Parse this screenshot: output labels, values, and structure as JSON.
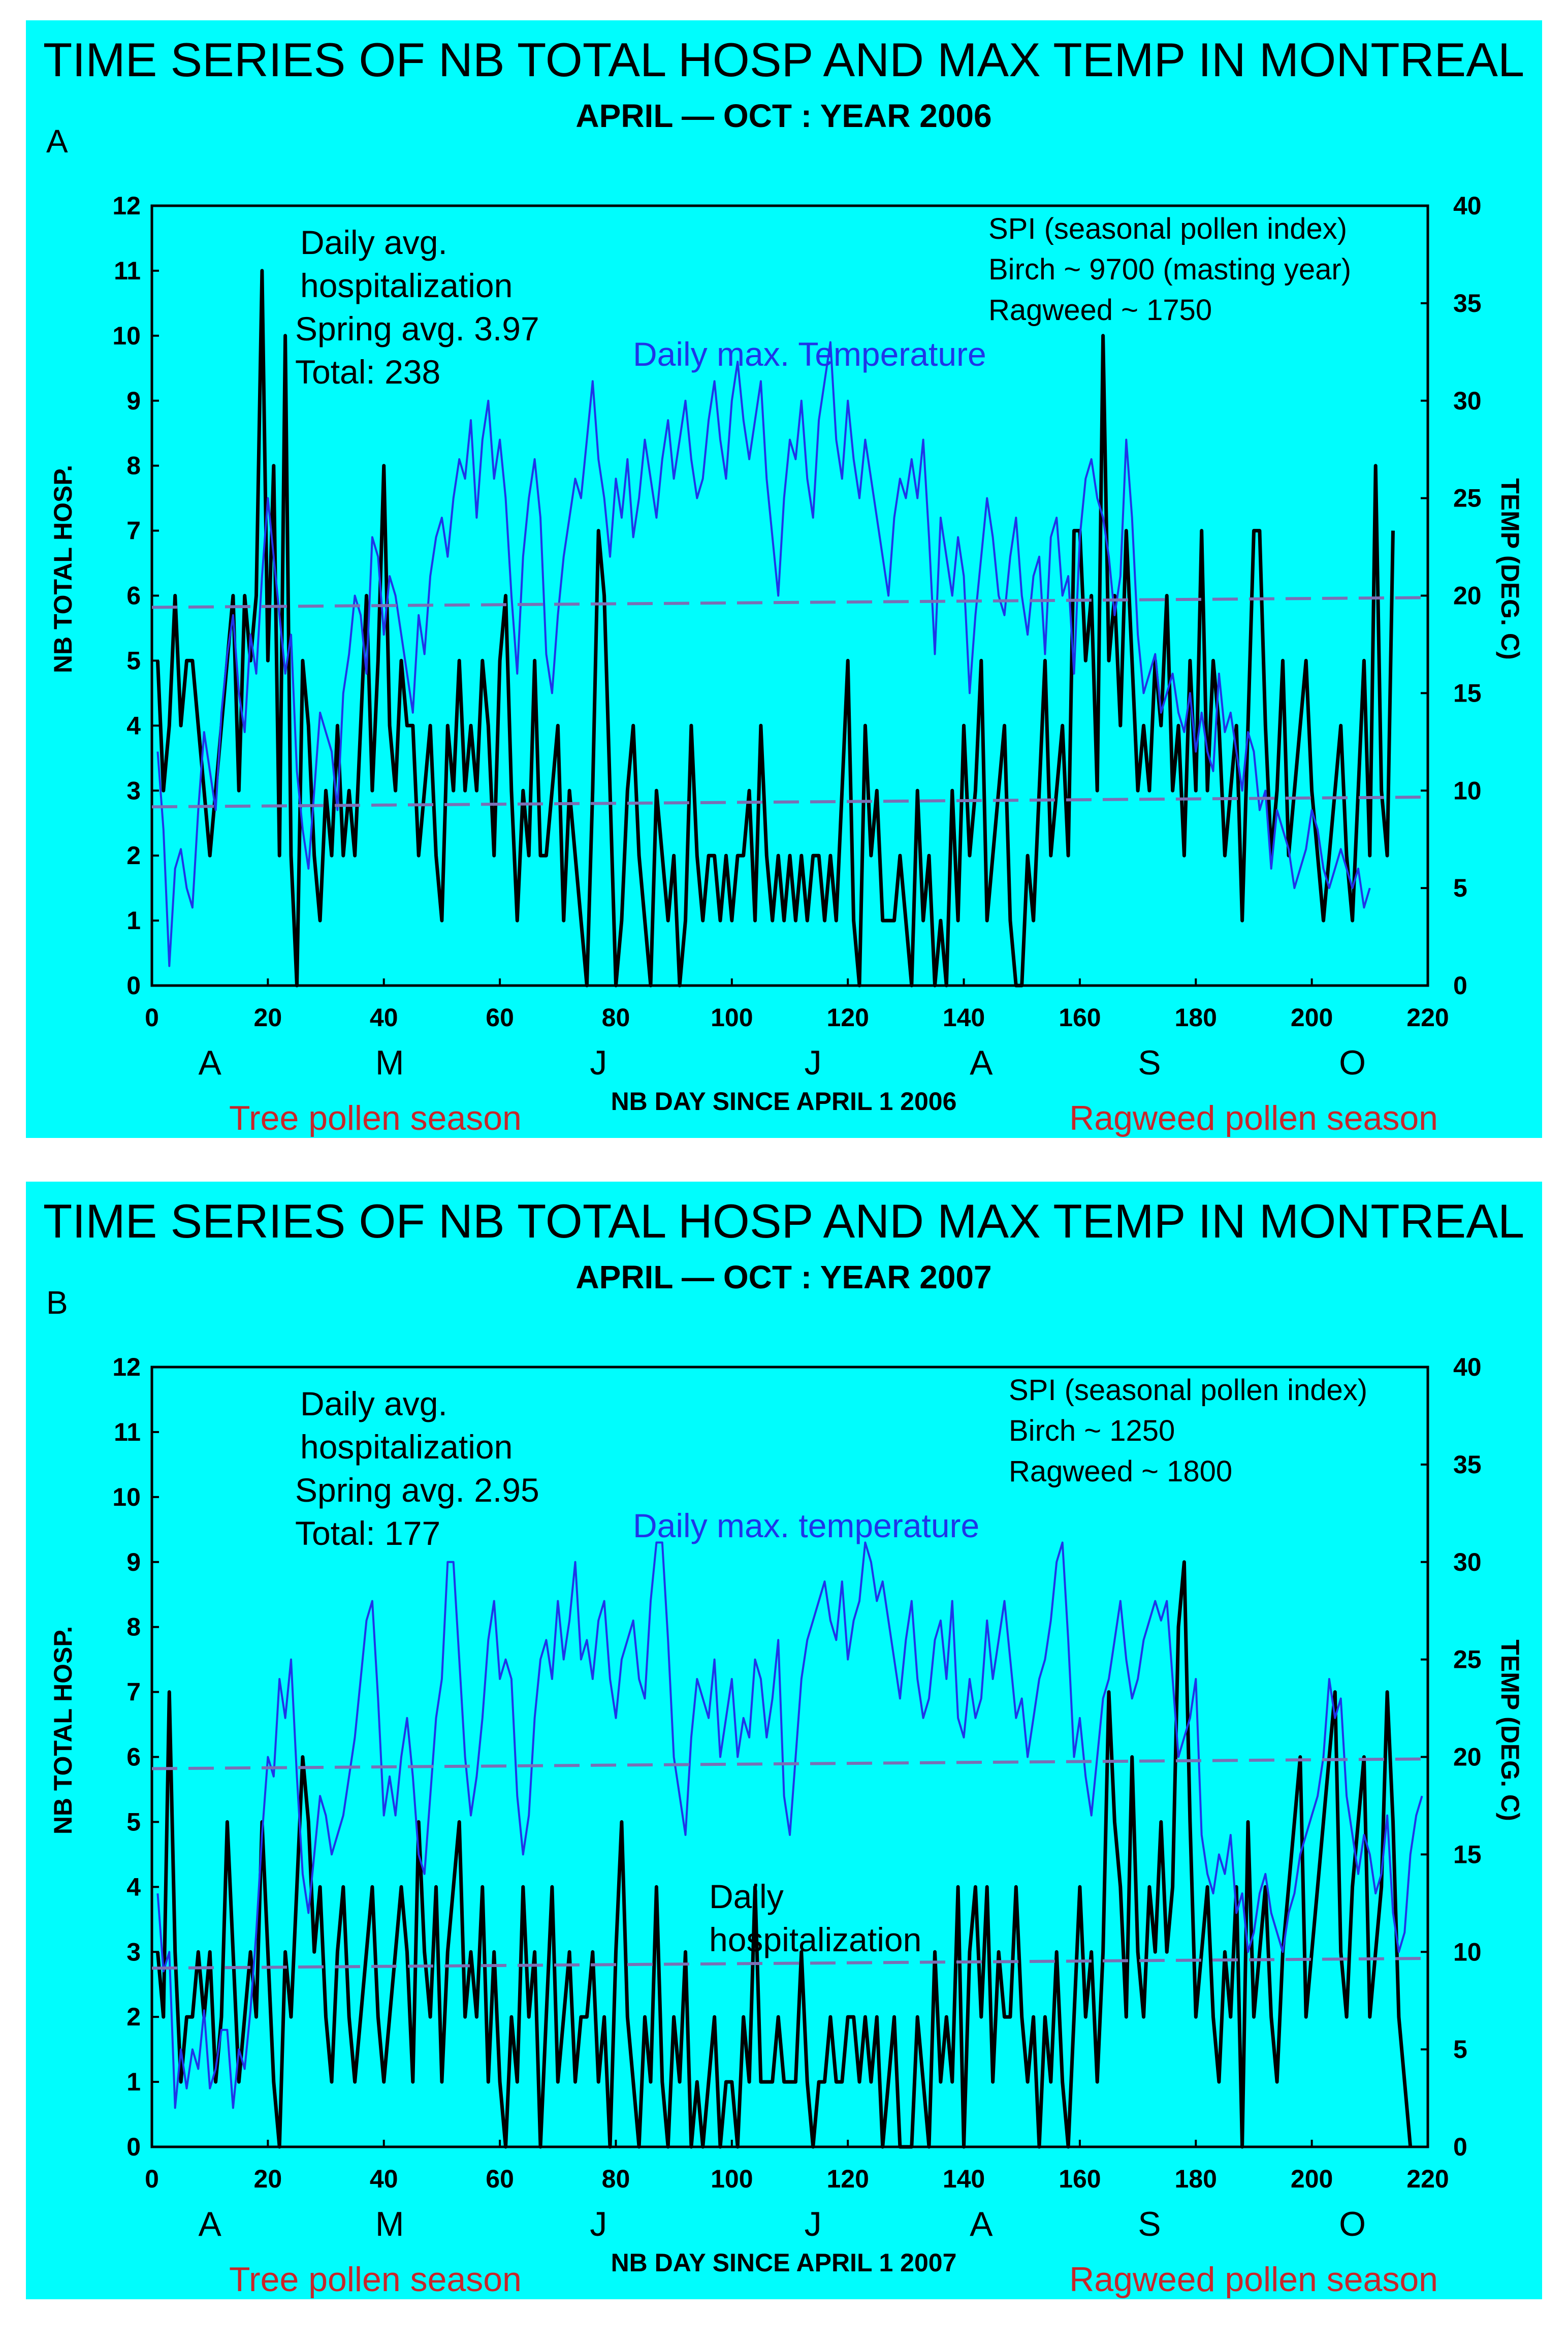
{
  "colors": {
    "panel_bg": "#00fdfd",
    "hosp_line": "#000000",
    "temp_line": "#1f35e8",
    "dashed_line": "#7a6fb5",
    "season_text": "#c8262a"
  },
  "chart_data": [
    {
      "type": "line",
      "panel_letter": "A",
      "title": "TIME SERIES OF NB TOTAL HOSP AND MAX TEMP IN MONTREAL",
      "subtitle": "APRIL — OCT : YEAR 2006",
      "xlabel": "NB DAY SINCE APRIL 1 2006",
      "ylabel_left": "NB TOTAL HOSP.",
      "ylabel_right": "TEMP (DEG. C)",
      "xlim": [
        0,
        220
      ],
      "ylim_left": [
        0,
        12
      ],
      "ylim_right": [
        0,
        40
      ],
      "x_ticks": [
        "0",
        "20",
        "40",
        "60",
        "80",
        "100",
        "120",
        "140",
        "160",
        "180",
        "200",
        "220"
      ],
      "y_left_ticks": [
        "0",
        "1",
        "2",
        "3",
        "4",
        "5",
        "6",
        "7",
        "8",
        "9",
        "10",
        "11",
        "12"
      ],
      "y_right_ticks": [
        "0",
        "5",
        "10",
        "15",
        "20",
        "25",
        "30",
        "35",
        "40"
      ],
      "months": [
        {
          "label": "A",
          "day": 10
        },
        {
          "label": "M",
          "day": 41
        },
        {
          "label": "J",
          "day": 77
        },
        {
          "label": "J",
          "day": 114
        },
        {
          "label": "A",
          "day": 143
        },
        {
          "label": "S",
          "day": 172
        },
        {
          "label": "O",
          "day": 207
        }
      ],
      "seasons": {
        "left": "Tree pollen season",
        "right": "Ragweed pollen season"
      },
      "annotations": {
        "avg_line1": "Daily avg.",
        "avg_line2": "hospitalization",
        "spring_avg": "Spring avg. 3.97",
        "total": "Total: 238",
        "spi_title": "SPI (seasonal pollen index)",
        "birch": "Birch ~ 9700 (masting year)",
        "ragweed": "Ragweed ~ 1750",
        "temp_label": "Daily max. Temperature"
      },
      "dashed_lines": [
        {
          "name": "hosp-trend",
          "axis": "left",
          "start": 2.75,
          "end": 2.9
        },
        {
          "name": "temp-trend",
          "axis": "right",
          "start": 19.4,
          "end": 19.9
        }
      ],
      "series": [
        {
          "name": "Daily hospitalization",
          "axis": "left",
          "start_day": 1,
          "values": [
            5,
            3,
            4,
            6,
            4,
            5,
            5,
            4,
            3,
            2,
            3,
            4,
            5,
            6,
            3,
            6,
            5,
            6,
            11,
            5,
            8,
            2,
            10,
            2,
            0,
            5,
            4,
            2,
            1,
            3,
            2,
            4,
            2,
            3,
            2,
            4,
            6,
            3,
            5,
            8,
            4,
            3,
            5,
            4,
            4,
            2,
            3,
            4,
            2,
            1,
            4,
            3,
            5,
            3,
            4,
            3,
            5,
            4,
            2,
            5,
            6,
            3,
            1,
            3,
            2,
            5,
            2,
            2,
            3,
            4,
            1,
            3,
            2,
            1,
            0,
            3,
            7,
            6,
            3,
            0,
            1,
            3,
            4,
            2,
            1,
            0,
            3,
            2,
            1,
            2,
            0,
            1,
            4,
            2,
            1,
            2,
            2,
            1,
            2,
            1,
            2,
            2,
            3,
            1,
            4,
            2,
            1,
            2,
            1,
            2,
            1,
            2,
            1,
            2,
            2,
            1,
            2,
            1,
            3,
            5,
            1,
            0,
            4,
            2,
            3,
            1,
            1,
            1,
            2,
            1,
            0,
            3,
            1,
            2,
            0,
            1,
            0,
            3,
            1,
            4,
            2,
            3,
            5,
            1,
            2,
            3,
            4,
            1,
            0,
            0,
            2,
            1,
            3,
            5,
            2,
            3,
            4,
            2,
            7,
            7,
            5,
            6,
            3,
            10,
            5,
            6,
            4,
            7,
            5,
            3,
            4,
            3,
            5,
            4,
            6,
            3,
            4,
            2,
            5,
            3,
            7,
            3,
            5,
            4,
            2,
            3,
            4,
            1,
            4,
            7,
            7,
            4,
            2,
            3,
            5,
            2,
            3,
            4,
            5,
            3,
            2,
            1,
            2,
            3,
            4,
            2,
            1,
            3,
            5,
            2,
            8,
            3,
            2,
            7
          ]
        },
        {
          "name": "Daily max. Temperature",
          "axis": "right",
          "start_day": 1,
          "values": [
            12,
            8,
            1,
            6,
            7,
            5,
            4,
            9,
            13,
            11,
            9,
            14,
            17,
            19,
            15,
            13,
            18,
            16,
            21,
            25,
            22,
            19,
            16,
            18,
            11,
            8,
            6,
            10,
            14,
            13,
            12,
            9,
            15,
            17,
            20,
            19,
            16,
            23,
            22,
            18,
            21,
            20,
            18,
            16,
            14,
            19,
            17,
            21,
            23,
            24,
            22,
            25,
            27,
            26,
            29,
            24,
            28,
            30,
            26,
            28,
            25,
            20,
            16,
            22,
            25,
            27,
            24,
            17,
            15,
            19,
            22,
            24,
            26,
            25,
            28,
            31,
            27,
            25,
            22,
            26,
            24,
            27,
            23,
            25,
            28,
            26,
            24,
            27,
            29,
            26,
            28,
            30,
            27,
            25,
            26,
            29,
            31,
            28,
            26,
            30,
            32,
            29,
            27,
            29,
            31,
            26,
            23,
            20,
            25,
            28,
            27,
            30,
            26,
            24,
            29,
            31,
            33,
            28,
            26,
            30,
            27,
            25,
            28,
            26,
            24,
            22,
            20,
            24,
            26,
            25,
            27,
            25,
            28,
            23,
            17,
            24,
            22,
            20,
            23,
            21,
            15,
            19,
            22,
            25,
            23,
            20,
            19,
            22,
            24,
            20,
            18,
            21,
            22,
            17,
            23,
            24,
            20,
            21,
            16,
            23,
            26,
            27,
            25,
            24,
            22,
            19,
            21,
            28,
            24,
            18,
            15,
            16,
            17,
            14,
            15,
            16,
            14,
            13,
            15,
            12,
            14,
            12,
            11,
            16,
            13,
            14,
            12,
            10,
            13,
            12,
            9,
            10,
            6,
            9,
            8,
            7,
            5,
            6,
            7,
            9,
            8,
            6,
            5,
            6,
            7,
            6,
            5,
            6,
            4,
            5
          ]
        }
      ]
    },
    {
      "type": "line",
      "panel_letter": "B",
      "title": "TIME SERIES OF NB TOTAL HOSP AND MAX TEMP IN MONTREAL",
      "subtitle": "APRIL — OCT : YEAR 2007",
      "xlabel": "NB DAY SINCE APRIL 1 2007",
      "ylabel_left": "NB TOTAL HOSP.",
      "ylabel_right": "TEMP (DEG. C)",
      "xlim": [
        0,
        220
      ],
      "ylim_left": [
        0,
        12
      ],
      "ylim_right": [
        0,
        40
      ],
      "x_ticks": [
        "0",
        "20",
        "40",
        "60",
        "80",
        "100",
        "120",
        "140",
        "160",
        "180",
        "200",
        "220"
      ],
      "y_left_ticks": [
        "0",
        "1",
        "2",
        "3",
        "4",
        "5",
        "6",
        "7",
        "8",
        "9",
        "10",
        "11",
        "12"
      ],
      "y_right_ticks": [
        "0",
        "5",
        "10",
        "15",
        "20",
        "25",
        "30",
        "35",
        "40"
      ],
      "months": [
        {
          "label": "A",
          "day": 10
        },
        {
          "label": "M",
          "day": 41
        },
        {
          "label": "J",
          "day": 77
        },
        {
          "label": "J",
          "day": 114
        },
        {
          "label": "A",
          "day": 143
        },
        {
          "label": "S",
          "day": 172
        },
        {
          "label": "O",
          "day": 207
        }
      ],
      "seasons": {
        "left": "Tree pollen season",
        "right": "Ragweed pollen season"
      },
      "annotations": {
        "avg_line1": "Daily avg.",
        "avg_line2": "hospitalization",
        "spring_avg": "Spring avg. 2.95",
        "total": "Total: 177",
        "spi_title": "SPI (seasonal pollen index)",
        "birch": "Birch ~ 1250",
        "ragweed": "Ragweed ~ 1800",
        "temp_label": "Daily max. temperature",
        "hosp_label1": "Daily",
        "hosp_label2": "hospitalization"
      },
      "dashed_lines": [
        {
          "name": "hosp-trend",
          "axis": "left",
          "start": 2.75,
          "end": 2.9
        },
        {
          "name": "temp-trend",
          "axis": "right",
          "start": 19.4,
          "end": 19.9
        }
      ],
      "series": [
        {
          "name": "Daily hospitalization",
          "axis": "left",
          "start_day": 1,
          "values": [
            3,
            2,
            7,
            3,
            1,
            2,
            2,
            3,
            2,
            3,
            1,
            2,
            5,
            3,
            1,
            2,
            3,
            2,
            5,
            3,
            1,
            0,
            3,
            2,
            4,
            6,
            5,
            3,
            4,
            2,
            1,
            3,
            4,
            2,
            1,
            2,
            3,
            4,
            2,
            1,
            2,
            3,
            4,
            3,
            1,
            5,
            3,
            2,
            4,
            1,
            3,
            4,
            5,
            2,
            3,
            2,
            4,
            1,
            3,
            1,
            0,
            2,
            1,
            4,
            2,
            3,
            0,
            2,
            4,
            1,
            2,
            3,
            1,
            2,
            2,
            3,
            1,
            2,
            0,
            3,
            5,
            2,
            1,
            0,
            2,
            1,
            4,
            1,
            0,
            2,
            1,
            3,
            0,
            1,
            0,
            1,
            2,
            0,
            1,
            1,
            0,
            2,
            1,
            4,
            1,
            1,
            1,
            2,
            1,
            1,
            1,
            3,
            1,
            0,
            1,
            1,
            2,
            1,
            1,
            2,
            2,
            1,
            2,
            1,
            2,
            0,
            1,
            2,
            0,
            0,
            0,
            2,
            1,
            0,
            3,
            1,
            2,
            1,
            4,
            0,
            3,
            4,
            2,
            4,
            1,
            3,
            2,
            2,
            4,
            2,
            1,
            2,
            0,
            2,
            1,
            3,
            1,
            0,
            2,
            4,
            2,
            3,
            1,
            3,
            7,
            5,
            4,
            2,
            6,
            3,
            2,
            4,
            3,
            5,
            3,
            4,
            8,
            9,
            5,
            2,
            3,
            4,
            2,
            1,
            3,
            2,
            4,
            0,
            5,
            2,
            3,
            4,
            2,
            1,
            3,
            4,
            5,
            6,
            2,
            3,
            4,
            5,
            6,
            7,
            3,
            2,
            4,
            5,
            6,
            2,
            3,
            4,
            7,
            5,
            2,
            1,
            0
          ]
        },
        {
          "name": "Daily max. temperature",
          "axis": "right",
          "start_day": 1,
          "values": [
            13,
            9,
            10,
            2,
            5,
            3,
            5,
            4,
            7,
            3,
            4,
            6,
            6,
            2,
            5,
            4,
            7,
            11,
            16,
            20,
            19,
            24,
            22,
            25,
            19,
            14,
            12,
            15,
            18,
            17,
            15,
            16,
            17,
            19,
            21,
            24,
            27,
            28,
            23,
            17,
            19,
            17,
            20,
            22,
            19,
            15,
            14,
            18,
            22,
            24,
            30,
            30,
            25,
            20,
            17,
            19,
            22,
            26,
            28,
            24,
            25,
            24,
            18,
            15,
            17,
            22,
            25,
            26,
            24,
            28,
            25,
            27,
            30,
            25,
            26,
            24,
            27,
            28,
            24,
            22,
            25,
            26,
            27,
            24,
            23,
            28,
            31,
            31,
            26,
            20,
            18,
            16,
            21,
            24,
            23,
            22,
            25,
            20,
            22,
            24,
            20,
            22,
            21,
            25,
            24,
            21,
            23,
            26,
            18,
            16,
            20,
            24,
            26,
            27,
            28,
            29,
            27,
            26,
            29,
            25,
            27,
            28,
            31,
            30,
            28,
            29,
            27,
            25,
            23,
            26,
            28,
            24,
            22,
            23,
            26,
            27,
            24,
            28,
            22,
            21,
            24,
            22,
            23,
            27,
            24,
            26,
            28,
            25,
            22,
            23,
            20,
            22,
            24,
            25,
            27,
            30,
            31,
            26,
            20,
            22,
            19,
            17,
            20,
            23,
            24,
            26,
            28,
            25,
            23,
            24,
            26,
            27,
            28,
            27,
            28,
            24,
            20,
            21,
            22,
            24,
            16,
            14,
            13,
            15,
            14,
            16,
            12,
            13,
            10,
            11,
            13,
            14,
            12,
            11,
            10,
            12,
            13,
            15,
            16,
            17,
            18,
            20,
            24,
            22,
            23,
            18,
            16,
            14,
            16,
            15,
            13,
            14,
            17,
            12,
            10,
            11,
            15,
            17,
            18
          ]
        }
      ]
    }
  ]
}
